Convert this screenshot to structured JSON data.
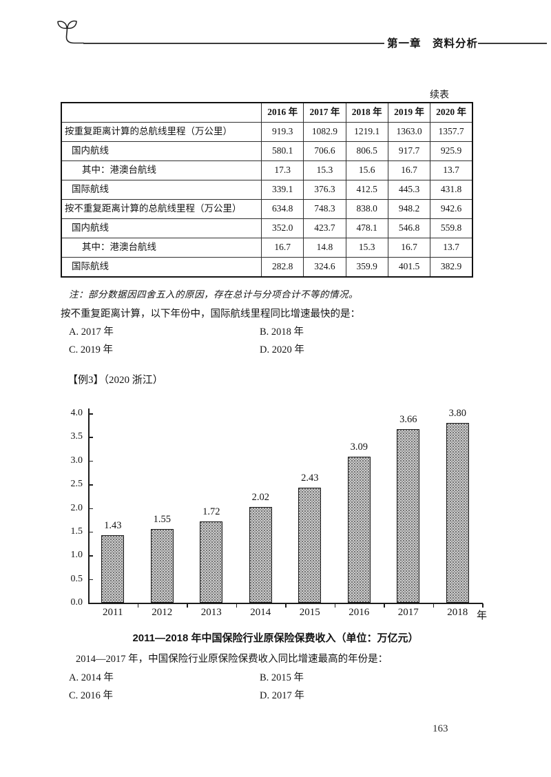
{
  "page": {
    "header_title": "第一章　资料分析",
    "continued_label": "续表",
    "page_number": "163"
  },
  "table": {
    "columns": [
      "",
      "2016 年",
      "2017 年",
      "2018 年",
      "2019 年",
      "2020 年"
    ],
    "rows": [
      {
        "label": "按重复距离计算的总航线里程（万公里）",
        "indent": 0,
        "values": [
          "919.3",
          "1082.9",
          "1219.1",
          "1363.0",
          "1357.7"
        ]
      },
      {
        "label": "国内航线",
        "indent": 1,
        "values": [
          "580.1",
          "706.6",
          "806.5",
          "917.7",
          "925.9"
        ]
      },
      {
        "label": "其中：港澳台航线",
        "indent": 2,
        "values": [
          "17.3",
          "15.3",
          "15.6",
          "16.7",
          "13.7"
        ]
      },
      {
        "label": "国际航线",
        "indent": 1,
        "values": [
          "339.1",
          "376.3",
          "412.5",
          "445.3",
          "431.8"
        ]
      },
      {
        "label": "按不重复距离计算的总航线里程（万公里）",
        "indent": 0,
        "values": [
          "634.8",
          "748.3",
          "838.0",
          "948.2",
          "942.6"
        ]
      },
      {
        "label": "国内航线",
        "indent": 1,
        "values": [
          "352.0",
          "423.7",
          "478.1",
          "546.8",
          "559.8"
        ]
      },
      {
        "label": "其中：港澳台航线",
        "indent": 2,
        "values": [
          "16.7",
          "14.8",
          "15.3",
          "16.7",
          "13.7"
        ]
      },
      {
        "label": "国际航线",
        "indent": 1,
        "values": [
          "282.8",
          "324.6",
          "359.9",
          "401.5",
          "382.9"
        ]
      }
    ],
    "note": "注：部分数据因四舍五入的原因，存在总计与分项合计不等的情况。"
  },
  "question1": {
    "text": "按不重复距离计算，以下年份中，国际航线里程同比增速最快的是：",
    "options": [
      {
        "key": "A.",
        "text": "2017 年"
      },
      {
        "key": "B.",
        "text": "2018 年"
      },
      {
        "key": "C.",
        "text": "2019 年"
      },
      {
        "key": "D.",
        "text": "2020 年"
      }
    ]
  },
  "example_label": "【例3】（2020 浙江）",
  "chart_data": {
    "type": "bar",
    "categories": [
      "2011",
      "2012",
      "2013",
      "2014",
      "2015",
      "2016",
      "2017",
      "2018"
    ],
    "values": [
      1.43,
      1.55,
      1.72,
      2.02,
      2.43,
      3.09,
      3.66,
      3.8
    ],
    "value_labels": [
      "1.43",
      "1.55",
      "1.72",
      "2.02",
      "2.43",
      "3.09",
      "3.66",
      "3.80"
    ],
    "title": "2011—2018 年中国保险行业原保险保费收入（单位：万亿元）",
    "xlabel_suffix": "年",
    "ylabel": "",
    "ylim": [
      0,
      4.0
    ],
    "ytick_step": 0.5,
    "grid": false,
    "legend": false,
    "bar_fill": "#cccccc",
    "bar_outline": "#161616"
  },
  "question2": {
    "text": "2014—2017 年，中国保险行业原保险保费收入同比增速最高的年份是：",
    "options": [
      {
        "key": "A.",
        "text": "2014 年"
      },
      {
        "key": "B.",
        "text": "2015 年"
      },
      {
        "key": "C.",
        "text": "2016 年"
      },
      {
        "key": "D.",
        "text": "2017 年"
      }
    ]
  }
}
